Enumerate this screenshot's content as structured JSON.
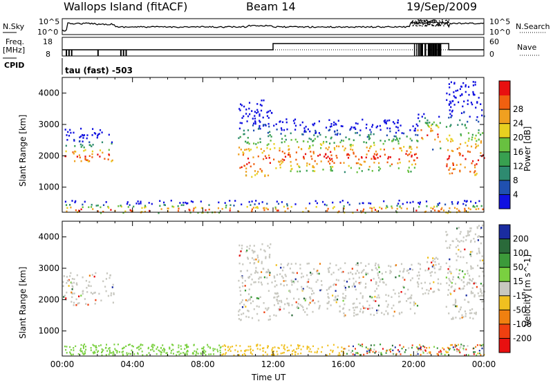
{
  "header": {
    "radar": "Wallops Island (fitACF)",
    "beam": "Beam 14",
    "date": "19/Sep/2009"
  },
  "strip1": {
    "left_label": "N.Sky",
    "right_label": "N.Search",
    "left_ticks": [
      "10^5",
      "10^0"
    ],
    "right_ticks": [
      "10^5",
      "10^0"
    ]
  },
  "strip2": {
    "left_label_line1": "Freq.",
    "left_label_line2": "[MHz]",
    "right_label": "Nave",
    "left_ticks": [
      "18",
      "8"
    ],
    "right_ticks": [
      "60",
      "0"
    ]
  },
  "strip3": {
    "left_label": "CPID",
    "text": "tau (fast) -503"
  },
  "chart_data": [
    {
      "type": "heatmap",
      "name": "Power",
      "xlabel": "Time UT",
      "ylabel": "Slant Range [km]",
      "x_ticks": [
        "00:00",
        "04:00",
        "08:00",
        "12:00",
        "16:00",
        "20:00",
        "00:00"
      ],
      "xlim_hours": [
        0,
        24
      ],
      "ylim": [
        200,
        4500
      ],
      "y_ticks": [
        1000,
        2000,
        3000,
        4000
      ],
      "colorbar": {
        "label": "Power [dB]",
        "ticks": [
          "4",
          "8",
          "12",
          "16",
          "20",
          "24",
          "28"
        ],
        "colors": [
          "#1010e0",
          "#2050b0",
          "#2e8a70",
          "#38a050",
          "#68c040",
          "#e8d020",
          "#f0a020",
          "#f06010",
          "#e81010"
        ]
      },
      "regions": [
        {
          "t0": 0.0,
          "t1": 2.9,
          "r0": 1850,
          "r1": 2900,
          "peak": 2000
        },
        {
          "t0": 10.0,
          "t1": 11.9,
          "r0": 1350,
          "r1": 3800,
          "peak": 1800
        },
        {
          "t0": 12.0,
          "t1": 20.2,
          "r0": 1500,
          "r1": 3200,
          "peak": 2000
        },
        {
          "t0": 20.2,
          "t1": 21.5,
          "r0": 2200,
          "r1": 3400,
          "peak": 2700
        },
        {
          "t0": 21.8,
          "t1": 24.0,
          "r0": 1400,
          "r1": 4400,
          "peak": 1900
        },
        {
          "t0": 0.0,
          "t1": 24.0,
          "r0": 200,
          "r1": 600,
          "peak": 300
        }
      ]
    },
    {
      "type": "heatmap",
      "name": "Velocity",
      "xlabel": "Time UT",
      "ylabel": "Slant Range [km]",
      "x_ticks": [
        "00:00",
        "04:00",
        "08:00",
        "12:00",
        "16:00",
        "20:00",
        "00:00"
      ],
      "xlim_hours": [
        0,
        24
      ],
      "ylim": [
        200,
        4500
      ],
      "y_ticks": [
        1000,
        2000,
        3000,
        4000
      ],
      "colorbar": {
        "label": "Velocity [m s^-1]",
        "ticks": [
          "200",
          "100",
          "50",
          "15",
          "-15",
          "-50",
          "-100",
          "-200"
        ],
        "colors": [
          "#1a2ca0",
          "#2a6a3a",
          "#3c9a3a",
          "#7ad040",
          "#c8c8c0",
          "#f0c020",
          "#f08010",
          "#f04010",
          "#e81010"
        ]
      },
      "regions": [
        {
          "t0": 0.0,
          "t1": 2.9,
          "r0": 1850,
          "r1": 2900
        },
        {
          "t0": 10.0,
          "t1": 11.9,
          "r0": 1350,
          "r1": 3800
        },
        {
          "t0": 12.0,
          "t1": 20.2,
          "r0": 1500,
          "r1": 3200
        },
        {
          "t0": 20.2,
          "t1": 21.5,
          "r0": 2200,
          "r1": 3400
        },
        {
          "t0": 21.8,
          "t1": 24.0,
          "r0": 1400,
          "r1": 4400
        }
      ]
    }
  ]
}
